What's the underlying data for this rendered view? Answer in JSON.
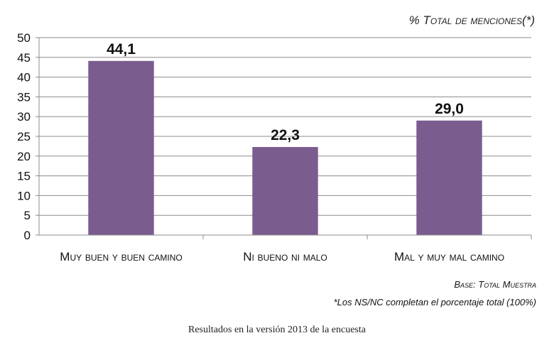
{
  "chart_data": {
    "type": "bar",
    "unit_label": "% Total de menciones(*)",
    "categories": [
      "Muy buen y buen camino",
      "Ni bueno ni malo",
      "Mal y muy mal camino"
    ],
    "values": [
      44.1,
      22.3,
      29.0
    ],
    "value_labels": [
      "44,1",
      "22,3",
      "29,0"
    ],
    "ylim": [
      0,
      50
    ],
    "yticks": [
      0,
      5,
      10,
      15,
      20,
      25,
      30,
      35,
      40,
      45,
      50
    ],
    "grid": true,
    "bar_color": "#7B5C8F",
    "grid_color": "#8C8C8C"
  },
  "notes": {
    "base": "Base: Total Muestra",
    "footnote": "*Los NS/NC completan el porcentaje total (100%)"
  },
  "caption": "Resultados en la versión 2013 de la encuesta"
}
